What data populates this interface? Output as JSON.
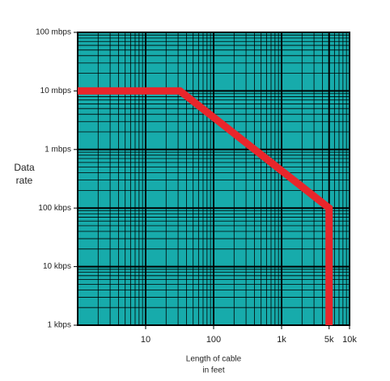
{
  "chart_data": {
    "type": "line",
    "xlabel": [
      "Length of cable",
      "in feet"
    ],
    "ylabel": [
      "Data",
      "rate"
    ],
    "log_x": true,
    "log_y": true,
    "grid": true,
    "minor_grid": true,
    "background": "#17abab",
    "xlim": [
      1,
      10000
    ],
    "xticks": [
      10,
      100,
      {
        "value": 1000,
        "label": "1k"
      },
      {
        "value": 5000,
        "label": "5k"
      },
      {
        "value": 10000,
        "label": "10k"
      }
    ],
    "ylim": [
      1000,
      100000000
    ],
    "yticks": [
      {
        "value": 1000,
        "label": "1 kbps"
      },
      {
        "value": 10000,
        "label": "10 kbps"
      },
      {
        "value": 100000,
        "label": "100 kbps"
      },
      {
        "value": 1000000,
        "label": "1 mbps"
      },
      {
        "value": 10000000,
        "label": "10 mbps"
      },
      {
        "value": 100000000,
        "label": "100 mbps"
      }
    ],
    "series": [
      {
        "color": "#e8262b",
        "x": [
          1,
          32,
          5000,
          5000
        ],
        "values": [
          10000000,
          10000000,
          100000,
          1000
        ]
      }
    ]
  }
}
